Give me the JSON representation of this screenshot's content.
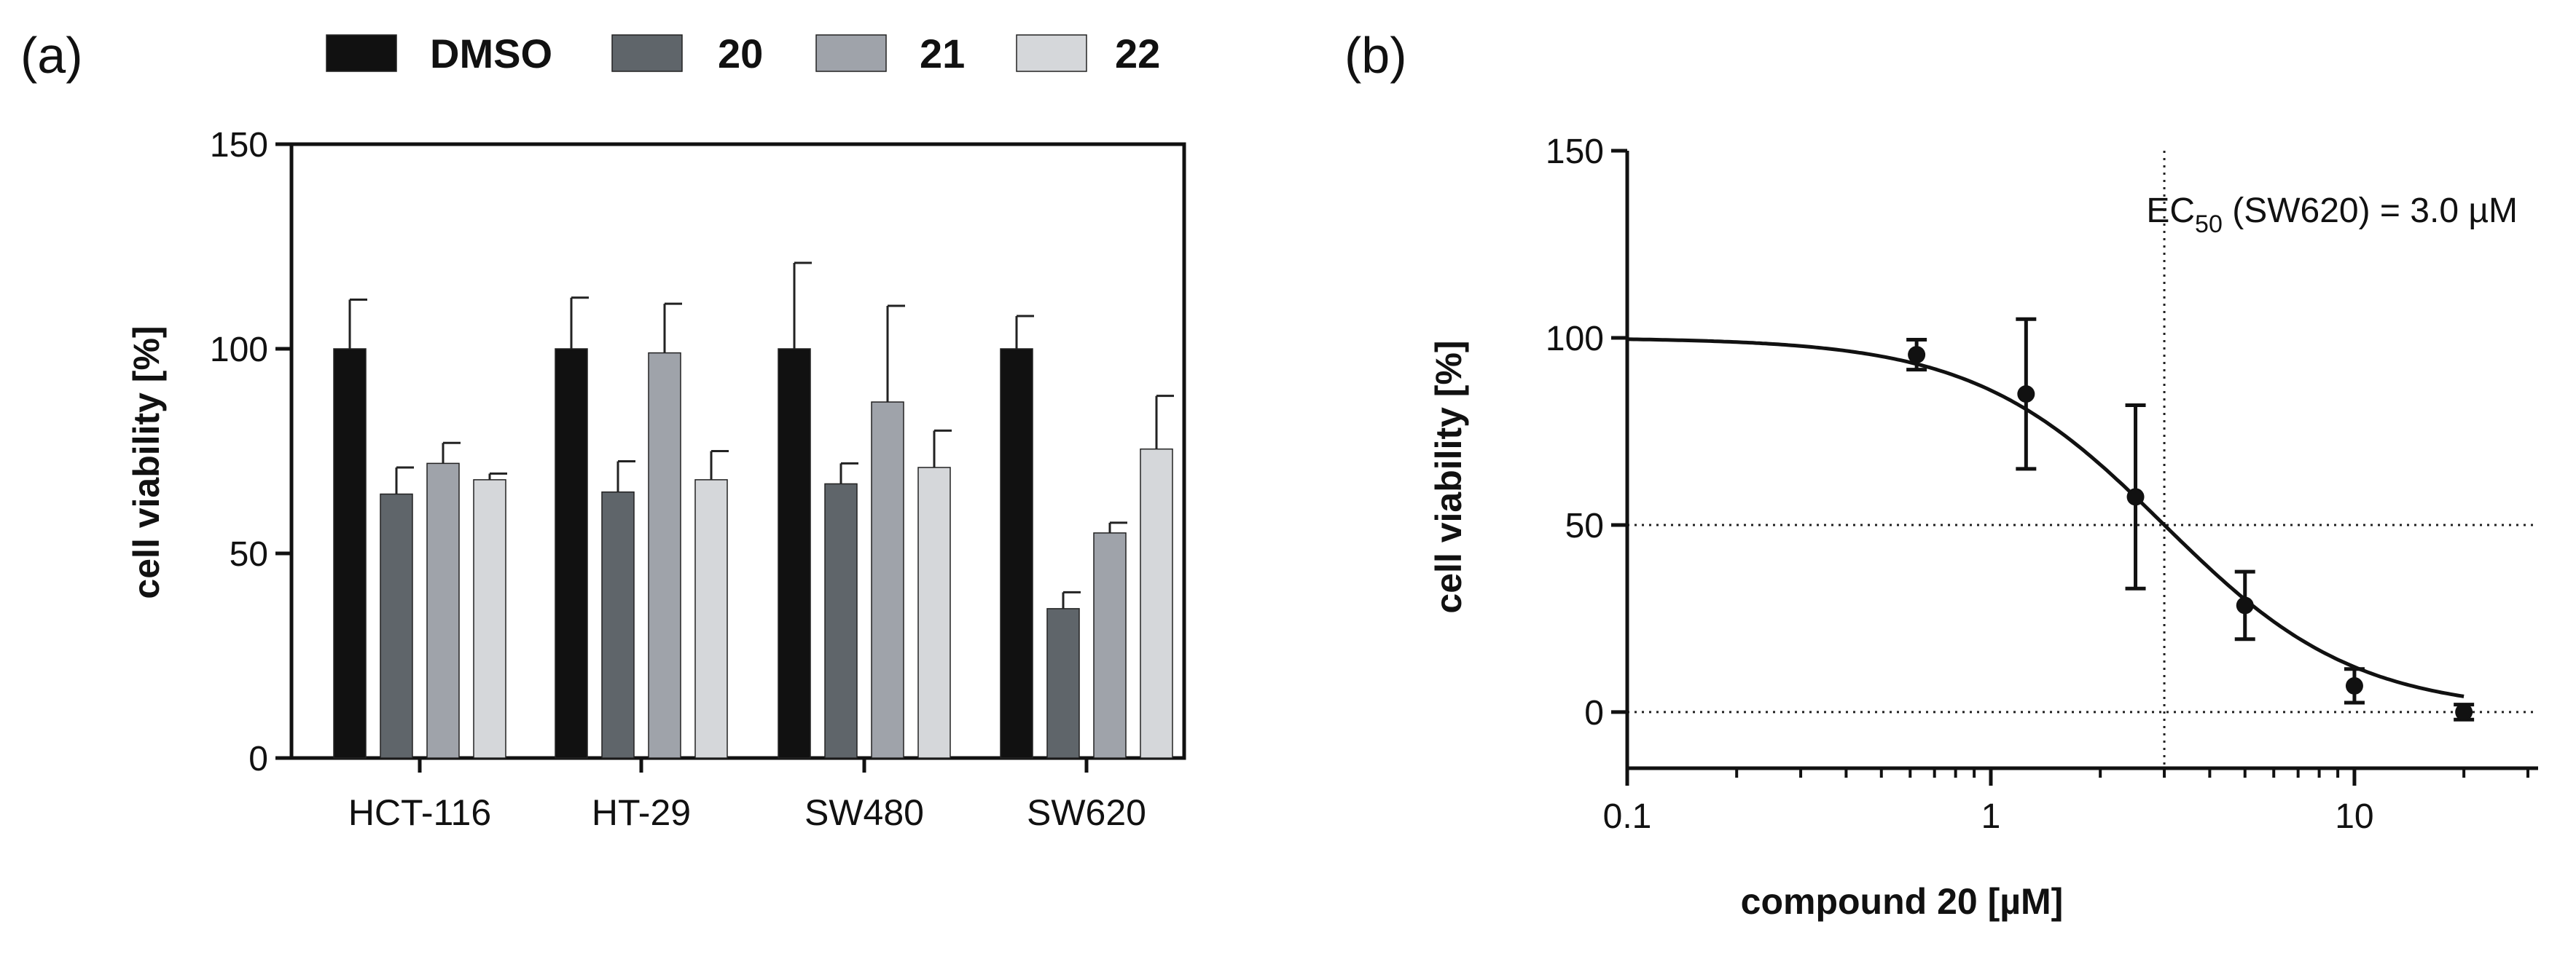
{
  "colors": {
    "DMSO": "#111111",
    "20": "#5f656a",
    "21": "#9fa3aa",
    "22": "#d5d7da",
    "axis": "#111111"
  },
  "chart_data": [
    {
      "type": "bar",
      "panel_label": "(a)",
      "legend": [
        "DMSO",
        "20",
        "21",
        "22"
      ],
      "legend_placement": "top",
      "categories": [
        "HCT-116",
        "HT-29",
        "SW480",
        "SW620"
      ],
      "ylabel": "cell viability [%]",
      "xlabel": "",
      "ylim": [
        0,
        150
      ],
      "yticks": [
        0,
        50,
        100,
        150
      ],
      "ytick_labels": [
        "0",
        "50",
        "100",
        "150"
      ],
      "series": [
        {
          "name": "DMSO",
          "values": [
            100,
            100,
            100,
            100
          ],
          "errors": [
            12,
            12.5,
            21,
            8
          ]
        },
        {
          "name": "20",
          "values": [
            64.5,
            65,
            67,
            36.5
          ],
          "errors": [
            6.5,
            7.5,
            5,
            4
          ]
        },
        {
          "name": "21",
          "values": [
            72,
            99,
            87,
            55
          ],
          "errors": [
            5,
            12,
            23.5,
            2.5
          ]
        },
        {
          "name": "22",
          "values": [
            68,
            68,
            71,
            75.5
          ],
          "errors": [
            1.5,
            7,
            9,
            13
          ]
        }
      ]
    },
    {
      "type": "scatter",
      "panel_label": "(b)",
      "xlabel": "compound 20 [µM]",
      "ylabel": "cell viability [%]",
      "xscale": "log",
      "xlim": [
        0.1,
        32
      ],
      "ylim": [
        -15,
        150
      ],
      "xticks": [
        0.1,
        1,
        10
      ],
      "xtick_labels": [
        "0.1",
        "1",
        "10"
      ],
      "yticks": [
        0,
        50,
        100,
        150
      ],
      "ytick_labels": [
        "0",
        "50",
        "100",
        "150"
      ],
      "points": [
        {
          "x": 0.625,
          "y": 95.5,
          "err": 4
        },
        {
          "x": 1.25,
          "y": 85,
          "err": 20
        },
        {
          "x": 2.5,
          "y": 57.5,
          "err": 24.5
        },
        {
          "x": 5,
          "y": 28.5,
          "err": 9
        },
        {
          "x": 10,
          "y": 7,
          "err": 4.5
        },
        {
          "x": 20,
          "y": 0,
          "err": 2
        }
      ],
      "fit": {
        "model": "hill",
        "top": 100,
        "bottom": 0,
        "ec50": 3.0,
        "hill_slope": 1.65
      },
      "annotation": {
        "prefix": "EC",
        "subscript": "50",
        "suffix": " (SW620) = 3.0  µM"
      },
      "reference_lines": {
        "x": 3.0,
        "y": [
          50,
          0
        ]
      }
    }
  ]
}
